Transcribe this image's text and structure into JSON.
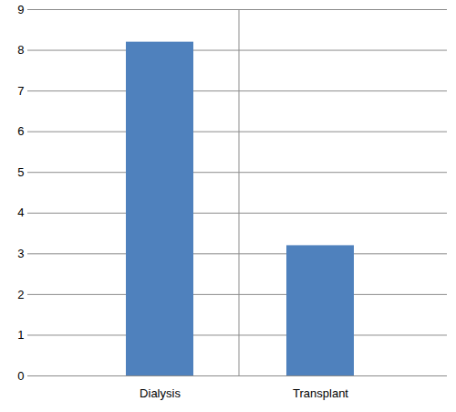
{
  "chart_data": {
    "type": "bar",
    "categories": [
      "Dialysis",
      "Transplant"
    ],
    "values": [
      8.2,
      3.2
    ],
    "color": "#4f81bd",
    "ylim": [
      0,
      9
    ],
    "yticks": [
      0,
      1,
      2,
      3,
      4,
      5,
      6,
      7,
      8,
      9
    ],
    "grid": true
  }
}
